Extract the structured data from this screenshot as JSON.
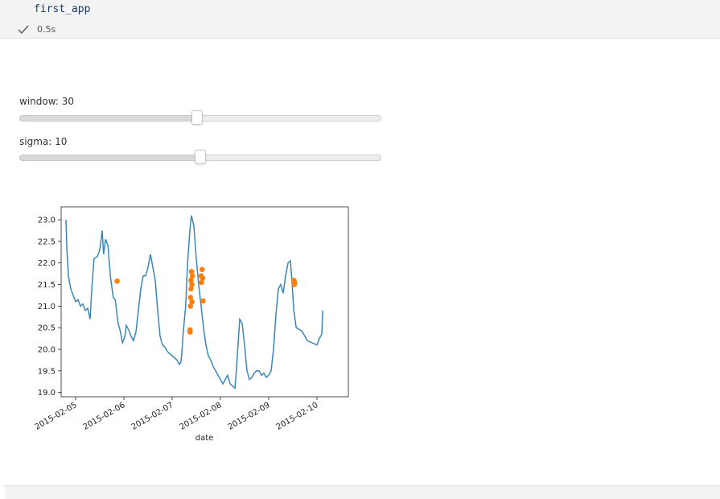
{
  "cell": {
    "code": "first_app",
    "status_icon": "check-icon",
    "duration": "0.5s"
  },
  "widgets": {
    "window": {
      "label": "window: 30",
      "value": 30,
      "fraction": 0.49
    },
    "sigma": {
      "label": "sigma: 10",
      "value": 10,
      "fraction": 0.5
    }
  },
  "colors": {
    "series_line": "#3a86b8",
    "outliers": "#ff7f0e"
  },
  "chart_data": {
    "type": "line",
    "xlabel": "date",
    "ylabel": "",
    "x_tick_labels": [
      "2015-02-05",
      "2015-02-06",
      "2015-02-07",
      "2015-02-08",
      "2015-02-09",
      "2015-02-10"
    ],
    "y_tick_labels": [
      "19.0",
      "19.5",
      "20.0",
      "20.5",
      "21.0",
      "21.5",
      "22.0",
      "22.5",
      "23.0"
    ],
    "xlim": [
      -0.3,
      5.65
    ],
    "ylim": [
      18.9,
      23.3
    ],
    "series": [
      {
        "type": "line",
        "points": [
          [
            -0.2,
            23.0
          ],
          [
            -0.18,
            22.3
          ],
          [
            -0.15,
            21.7
          ],
          [
            -0.1,
            21.4
          ],
          [
            -0.05,
            21.25
          ],
          [
            0.0,
            21.1
          ],
          [
            0.05,
            21.15
          ],
          [
            0.1,
            21.0
          ],
          [
            0.15,
            21.05
          ],
          [
            0.2,
            20.9
          ],
          [
            0.25,
            20.95
          ],
          [
            0.3,
            20.7
          ],
          [
            0.33,
            21.3
          ],
          [
            0.38,
            22.1
          ],
          [
            0.45,
            22.15
          ],
          [
            0.5,
            22.3
          ],
          [
            0.55,
            22.75
          ],
          [
            0.58,
            22.2
          ],
          [
            0.62,
            22.55
          ],
          [
            0.67,
            22.4
          ],
          [
            0.72,
            21.7
          ],
          [
            0.78,
            21.2
          ],
          [
            0.82,
            21.15
          ],
          [
            0.88,
            20.6
          ],
          [
            0.92,
            20.45
          ],
          [
            0.97,
            20.15
          ],
          [
            1.02,
            20.3
          ],
          [
            1.05,
            20.55
          ],
          [
            1.1,
            20.45
          ],
          [
            1.15,
            20.3
          ],
          [
            1.2,
            20.2
          ],
          [
            1.25,
            20.4
          ],
          [
            1.3,
            20.9
          ],
          [
            1.35,
            21.4
          ],
          [
            1.4,
            21.7
          ],
          [
            1.45,
            21.7
          ],
          [
            1.5,
            21.9
          ],
          [
            1.55,
            22.2
          ],
          [
            1.6,
            21.9
          ],
          [
            1.65,
            21.6
          ],
          [
            1.7,
            20.9
          ],
          [
            1.75,
            20.3
          ],
          [
            1.8,
            20.1
          ],
          [
            1.85,
            20.05
          ],
          [
            1.9,
            19.95
          ],
          [
            1.95,
            19.9
          ],
          [
            2.0,
            19.85
          ],
          [
            2.05,
            19.8
          ],
          [
            2.1,
            19.75
          ],
          [
            2.15,
            19.65
          ],
          [
            2.18,
            19.7
          ],
          [
            2.2,
            19.9
          ],
          [
            2.23,
            20.4
          ],
          [
            2.28,
            21.0
          ],
          [
            2.32,
            22.0
          ],
          [
            2.37,
            22.8
          ],
          [
            2.4,
            23.1
          ],
          [
            2.45,
            22.85
          ],
          [
            2.5,
            22.1
          ],
          [
            2.55,
            21.5
          ],
          [
            2.6,
            21.0
          ],
          [
            2.65,
            20.5
          ],
          [
            2.7,
            20.1
          ],
          [
            2.75,
            19.85
          ],
          [
            2.8,
            19.75
          ],
          [
            2.85,
            19.6
          ],
          [
            2.9,
            19.5
          ],
          [
            2.95,
            19.4
          ],
          [
            3.0,
            19.3
          ],
          [
            3.05,
            19.2
          ],
          [
            3.1,
            19.3
          ],
          [
            3.15,
            19.4
          ],
          [
            3.2,
            19.2
          ],
          [
            3.25,
            19.15
          ],
          [
            3.3,
            19.1
          ],
          [
            3.33,
            19.5
          ],
          [
            3.37,
            20.2
          ],
          [
            3.4,
            20.7
          ],
          [
            3.45,
            20.6
          ],
          [
            3.5,
            20.1
          ],
          [
            3.55,
            19.5
          ],
          [
            3.6,
            19.3
          ],
          [
            3.65,
            19.35
          ],
          [
            3.7,
            19.45
          ],
          [
            3.75,
            19.5
          ],
          [
            3.8,
            19.5
          ],
          [
            3.85,
            19.4
          ],
          [
            3.9,
            19.45
          ],
          [
            3.95,
            19.35
          ],
          [
            4.0,
            19.4
          ],
          [
            4.05,
            19.5
          ],
          [
            4.1,
            20.0
          ],
          [
            4.15,
            20.8
          ],
          [
            4.2,
            21.4
          ],
          [
            4.25,
            21.5
          ],
          [
            4.3,
            21.3
          ],
          [
            4.35,
            21.7
          ],
          [
            4.4,
            22.0
          ],
          [
            4.45,
            22.05
          ],
          [
            4.48,
            21.6
          ],
          [
            4.52,
            20.9
          ],
          [
            4.57,
            20.5
          ],
          [
            4.65,
            20.45
          ],
          [
            4.7,
            20.4
          ],
          [
            4.75,
            20.3
          ],
          [
            4.8,
            20.2
          ],
          [
            4.9,
            20.15
          ],
          [
            5.0,
            20.1
          ],
          [
            5.05,
            20.25
          ],
          [
            5.1,
            20.35
          ],
          [
            5.12,
            20.9
          ]
        ]
      },
      {
        "type": "scatter",
        "points": [
          [
            0.86,
            21.58
          ],
          [
            2.37,
            20.45
          ],
          [
            2.37,
            20.4
          ],
          [
            2.38,
            21.0
          ],
          [
            2.38,
            21.2
          ],
          [
            2.39,
            21.4
          ],
          [
            2.39,
            21.6
          ],
          [
            2.4,
            21.8
          ],
          [
            2.41,
            21.5
          ],
          [
            2.41,
            21.1
          ],
          [
            2.42,
            21.7
          ],
          [
            2.6,
            21.7
          ],
          [
            2.61,
            21.55
          ],
          [
            2.62,
            21.85
          ],
          [
            2.63,
            21.65
          ],
          [
            2.64,
            21.12
          ],
          [
            4.52,
            21.6
          ],
          [
            4.53,
            21.5
          ],
          [
            4.54,
            21.55
          ]
        ]
      }
    ]
  }
}
